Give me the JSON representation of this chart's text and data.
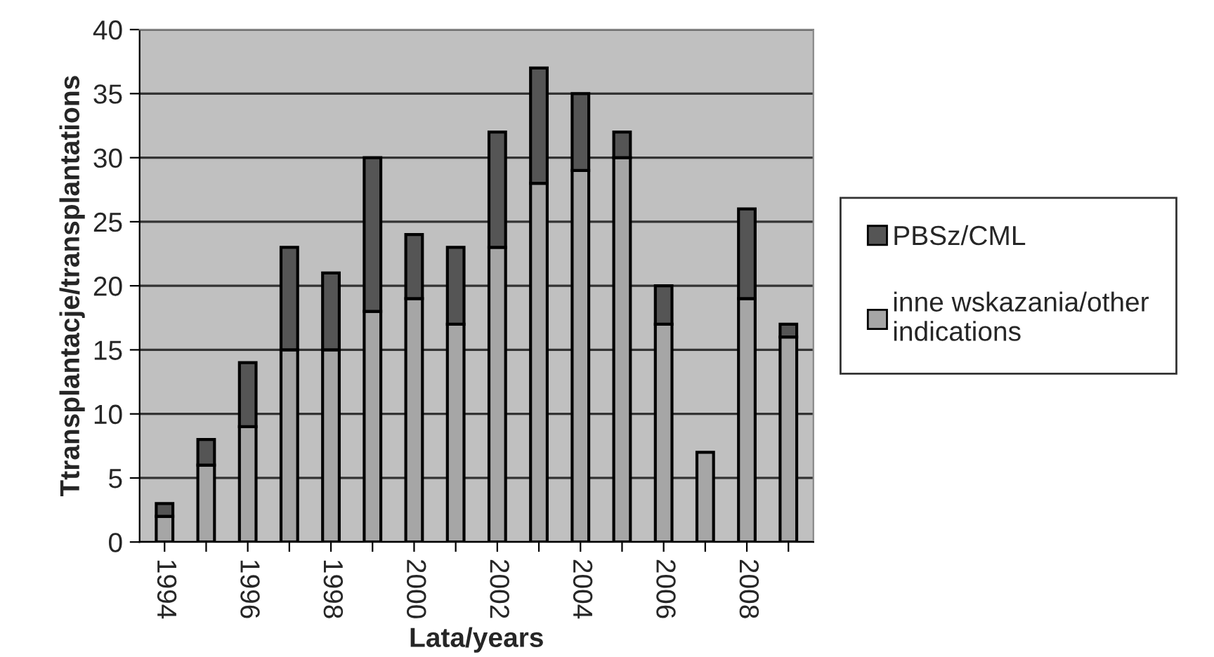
{
  "chart_data": {
    "type": "bar",
    "xlabel": "Lata/years",
    "ylabel": "Ttransplantacje/transplantations",
    "categories": [
      "1994",
      null,
      "1996",
      null,
      "1998",
      null,
      "2000",
      null,
      "2002",
      null,
      "2004",
      null,
      "2006",
      null,
      "2008",
      null
    ],
    "stacked": true,
    "series": [
      {
        "name": "inne wskazania/other indications",
        "color": "#a6a6a6",
        "values": [
          2,
          6,
          9,
          15,
          15,
          18,
          19,
          17,
          23,
          28,
          29,
          30,
          17,
          7,
          19,
          16
        ]
      },
      {
        "name": "PBSz/CML",
        "color": "#555555",
        "values": [
          1,
          2,
          5,
          8,
          6,
          12,
          5,
          6,
          9,
          9,
          6,
          2,
          3,
          null,
          7,
          1
        ]
      }
    ],
    "ylim": [
      0,
      40
    ],
    "yticks": [
      0,
      5,
      10,
      15,
      20,
      25,
      30,
      35,
      40
    ],
    "grid": "y",
    "legend": "right"
  }
}
